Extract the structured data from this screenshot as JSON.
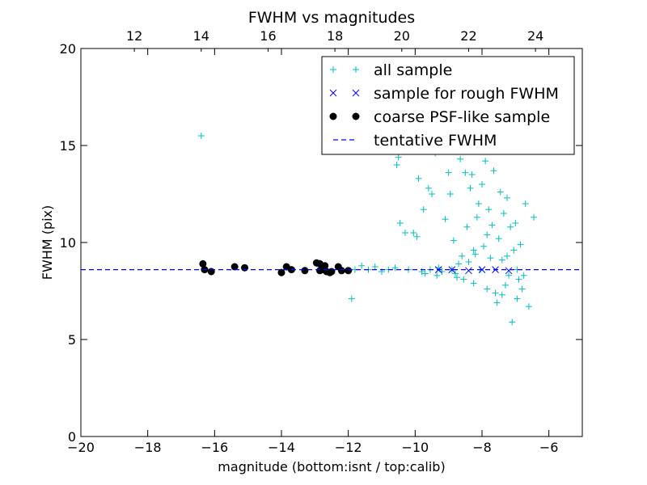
{
  "chart_data": {
    "type": "scatter",
    "title": "FWHM vs magnitudes",
    "xlabel": "magnitude (bottom:isnt / top:calib)",
    "ylabel": "FWHM (pix)",
    "xlim": [
      -20,
      -5
    ],
    "ylim": [
      0,
      20
    ],
    "x_ticks": [
      -20,
      -18,
      -16,
      -14,
      -12,
      -10,
      -8,
      -6
    ],
    "x_tick_labels": [
      "−20",
      "−18",
      "−16",
      "−14",
      "−12",
      "−10",
      "−8",
      "−6"
    ],
    "y_ticks": [
      0,
      5,
      10,
      15,
      20
    ],
    "y_tick_labels": [
      "0",
      "5",
      "10",
      "15",
      "20"
    ],
    "top_axis": {
      "label": "",
      "ticks": [
        12,
        14,
        16,
        18,
        20,
        22,
        24
      ],
      "tick_labels": [
        "12",
        "14",
        "16",
        "18",
        "20",
        "22",
        "24"
      ],
      "offset": 30.4
    },
    "grid": false,
    "legend_position": "top-right",
    "series": [
      {
        "name": "all sample",
        "marker": "plus",
        "color": "#00bfbf",
        "points": [
          [
            -16.4,
            15.5
          ],
          [
            -16.35,
            8.9
          ],
          [
            -16.3,
            8.6
          ],
          [
            -16.1,
            8.5
          ],
          [
            -15.4,
            8.75
          ],
          [
            -15.1,
            8.7
          ],
          [
            -14.0,
            8.5
          ],
          [
            -13.85,
            8.7
          ],
          [
            -13.7,
            8.6
          ],
          [
            -13.3,
            8.55
          ],
          [
            -12.95,
            8.9
          ],
          [
            -12.85,
            8.95
          ],
          [
            -12.8,
            8.6
          ],
          [
            -12.7,
            8.8
          ],
          [
            -12.6,
            8.45
          ],
          [
            -12.5,
            8.5
          ],
          [
            -12.3,
            8.75
          ],
          [
            -12.2,
            8.55
          ],
          [
            -12.0,
            8.55
          ],
          [
            -11.9,
            7.1
          ],
          [
            -11.8,
            8.6
          ],
          [
            -11.6,
            8.8
          ],
          [
            -11.4,
            8.6
          ],
          [
            -11.2,
            8.75
          ],
          [
            -11.0,
            8.5
          ],
          [
            -10.8,
            8.6
          ],
          [
            -10.6,
            8.7
          ],
          [
            -10.55,
            14.0
          ],
          [
            -10.5,
            14.4
          ],
          [
            -10.45,
            11.0
          ],
          [
            -10.3,
            10.5
          ],
          [
            -10.2,
            8.6
          ],
          [
            -10.05,
            10.5
          ],
          [
            -9.95,
            10.3
          ],
          [
            -9.9,
            13.3
          ],
          [
            -9.8,
            8.5
          ],
          [
            -9.75,
            11.7
          ],
          [
            -9.7,
            8.4
          ],
          [
            -9.6,
            12.8
          ],
          [
            -9.55,
            8.6
          ],
          [
            -9.5,
            12.5
          ],
          [
            -9.4,
            14.6
          ],
          [
            -9.35,
            8.3
          ],
          [
            -9.3,
            8.7
          ],
          [
            -9.2,
            8.5
          ],
          [
            -9.1,
            11.2
          ],
          [
            -9.0,
            13.6
          ],
          [
            -8.95,
            12.5
          ],
          [
            -8.9,
            8.6
          ],
          [
            -8.85,
            10.1
          ],
          [
            -8.8,
            8.4
          ],
          [
            -8.7,
            8.9
          ],
          [
            -8.65,
            14.3
          ],
          [
            -8.6,
            9.3
          ],
          [
            -8.55,
            8.1
          ],
          [
            -8.5,
            13.6
          ],
          [
            -8.45,
            10.8
          ],
          [
            -8.4,
            9.0
          ],
          [
            -8.35,
            12.8
          ],
          [
            -8.3,
            13.5
          ],
          [
            -8.25,
            7.9
          ],
          [
            -8.2,
            9.4
          ],
          [
            -8.15,
            11.3
          ],
          [
            -8.1,
            12.0
          ],
          [
            -8.05,
            8.6
          ],
          [
            -8.0,
            13.0
          ],
          [
            -7.95,
            9.8
          ],
          [
            -7.9,
            14.2
          ],
          [
            -7.85,
            7.6
          ],
          [
            -7.8,
            11.7
          ],
          [
            -7.75,
            9.2
          ],
          [
            -7.7,
            10.9
          ],
          [
            -7.65,
            13.7
          ],
          [
            -7.6,
            7.4
          ],
          [
            -7.55,
            6.9
          ],
          [
            -7.5,
            10.2
          ],
          [
            -7.45,
            12.6
          ],
          [
            -7.4,
            9.1
          ],
          [
            -7.35,
            11.5
          ],
          [
            -7.3,
            7.8
          ],
          [
            -7.25,
            12.3
          ],
          [
            -7.2,
            8.3
          ],
          [
            -7.15,
            10.8
          ],
          [
            -7.1,
            5.9
          ],
          [
            -7.05,
            9.6
          ],
          [
            -7.0,
            11.0
          ],
          [
            -6.95,
            7.1
          ],
          [
            -6.9,
            8.1
          ],
          [
            -6.85,
            9.9
          ],
          [
            -6.8,
            7.6
          ],
          [
            -6.7,
            12.0
          ],
          [
            -6.6,
            6.7
          ],
          [
            -6.45,
            11.3
          ],
          [
            -8.75,
            8.2
          ],
          [
            -8.25,
            9.6
          ],
          [
            -7.85,
            10.4
          ],
          [
            -7.4,
            7.3
          ],
          [
            -7.25,
            9.3
          ],
          [
            -6.95,
            8.6
          ],
          [
            -6.75,
            8.3
          ]
        ]
      },
      {
        "name": "sample for rough FWHM",
        "marker": "x",
        "color": "#0000ff",
        "points": [
          [
            -9.3,
            8.6
          ],
          [
            -8.9,
            8.6
          ],
          [
            -8.4,
            8.55
          ],
          [
            -8.0,
            8.6
          ],
          [
            -7.6,
            8.6
          ],
          [
            -7.2,
            8.55
          ]
        ]
      },
      {
        "name": "coarse PSF-like sample",
        "marker": "circle",
        "color": "#000000",
        "points": [
          [
            -16.35,
            8.9
          ],
          [
            -16.3,
            8.6
          ],
          [
            -16.1,
            8.5
          ],
          [
            -15.4,
            8.75
          ],
          [
            -15.1,
            8.7
          ],
          [
            -14.0,
            8.45
          ],
          [
            -13.85,
            8.75
          ],
          [
            -13.7,
            8.6
          ],
          [
            -13.3,
            8.55
          ],
          [
            -12.95,
            8.95
          ],
          [
            -12.85,
            8.9
          ],
          [
            -12.85,
            8.55
          ],
          [
            -12.75,
            8.6
          ],
          [
            -12.7,
            8.8
          ],
          [
            -12.65,
            8.5
          ],
          [
            -12.55,
            8.45
          ],
          [
            -12.5,
            8.5
          ],
          [
            -12.3,
            8.75
          ],
          [
            -12.2,
            8.55
          ],
          [
            -12.0,
            8.55
          ]
        ]
      },
      {
        "name": "tentative FWHM",
        "marker": "dashed-line",
        "color": "#0000ff",
        "y": 8.6
      }
    ]
  }
}
